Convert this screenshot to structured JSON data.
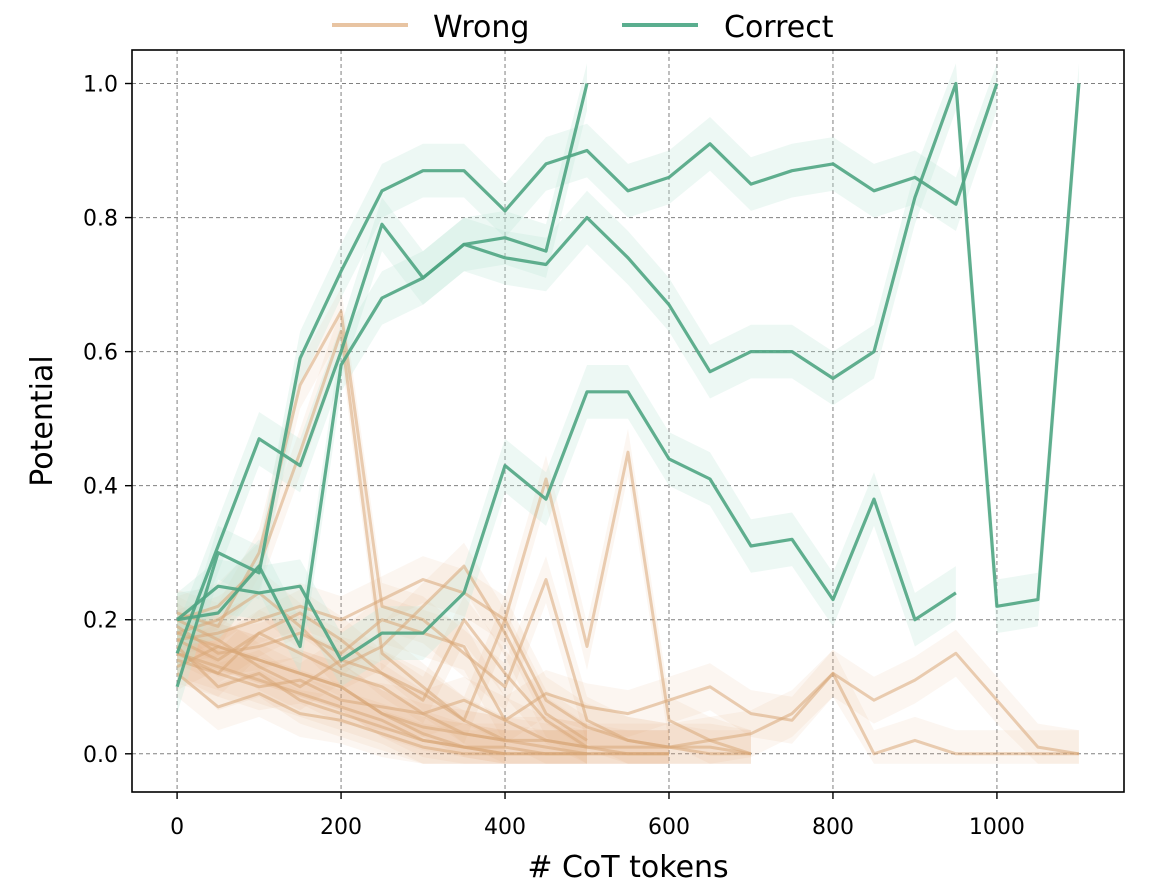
{
  "chart_data": {
    "type": "line",
    "xlabel": "# CoT tokens",
    "ylabel": "Potential",
    "xlim": [
      -55,
      1155
    ],
    "ylim": [
      -0.057,
      1.05
    ],
    "xticks": [
      0,
      200,
      400,
      600,
      800,
      1000
    ],
    "yticks": [
      0.0,
      0.2,
      0.4,
      0.6,
      0.8,
      1.0
    ],
    "xtick_labels": [
      "0",
      "200",
      "400",
      "600",
      "800",
      "1000"
    ],
    "ytick_labels": [
      "0.0",
      "0.2",
      "0.4",
      "0.6",
      "0.8",
      "1.0"
    ],
    "grid": true,
    "legend": {
      "placement": "top-center",
      "entries": [
        {
          "label": "Wrong",
          "color": "#e8c4a2"
        },
        {
          "label": "Correct",
          "color": "#5aae8f"
        }
      ]
    },
    "colors": {
      "wrong_line": "#d9a779",
      "wrong_band": "#e2a474",
      "correct_line": "#4fa583",
      "correct_band": "#bfe6d6"
    },
    "band_halfwidth": {
      "correct": 0.04,
      "wrong": 0.035
    },
    "series_correct": [
      {
        "x": [
          0,
          50,
          100,
          150,
          200,
          250,
          300,
          350,
          400,
          450,
          500
        ],
        "y": [
          0.15,
          0.31,
          0.47,
          0.43,
          0.6,
          0.79,
          0.71,
          0.76,
          0.77,
          0.75,
          1.0
        ]
      },
      {
        "x": [
          0,
          50,
          100,
          150,
          200,
          250,
          300,
          350,
          400,
          450,
          500,
          550,
          600,
          650,
          700,
          750,
          800,
          850,
          900,
          950
        ],
        "y": [
          0.2,
          0.25,
          0.24,
          0.25,
          0.14,
          0.18,
          0.18,
          0.24,
          0.43,
          0.38,
          0.54,
          0.54,
          0.44,
          0.41,
          0.31,
          0.32,
          0.23,
          0.38,
          0.2,
          0.24
        ]
      },
      {
        "x": [
          0,
          50,
          100,
          150,
          200,
          250,
          300,
          350,
          400,
          450,
          500,
          550,
          600,
          650,
          700,
          750,
          800,
          850,
          900,
          950,
          1000,
          1050,
          1100
        ],
        "y": [
          0.2,
          0.21,
          0.28,
          0.16,
          0.58,
          0.68,
          0.71,
          0.76,
          0.74,
          0.73,
          0.8,
          0.74,
          0.67,
          0.57,
          0.6,
          0.6,
          0.56,
          0.6,
          0.83,
          1.0,
          0.22,
          0.23,
          1.0
        ]
      },
      {
        "x": [
          0,
          50,
          100,
          150,
          200,
          250,
          300,
          350,
          400,
          450,
          500,
          550,
          600,
          650,
          700,
          750,
          800,
          850,
          900,
          950,
          1000
        ],
        "y": [
          0.1,
          0.3,
          0.27,
          0.59,
          0.72,
          0.84,
          0.87,
          0.87,
          0.81,
          0.88,
          0.9,
          0.84,
          0.86,
          0.91,
          0.85,
          0.87,
          0.88,
          0.84,
          0.86,
          0.82,
          1.0
        ]
      }
    ],
    "series_wrong": [
      {
        "x": [
          0,
          50,
          100,
          150,
          200,
          250,
          300,
          350,
          400,
          450,
          500,
          550,
          600,
          650,
          700,
          750,
          800,
          850,
          900,
          950,
          1000,
          1050,
          1100
        ],
        "y": [
          0.15,
          0.12,
          0.1,
          0.11,
          0.08,
          0.07,
          0.06,
          0.08,
          0.05,
          0.09,
          0.07,
          0.06,
          0.08,
          0.1,
          0.06,
          0.05,
          0.12,
          0.08,
          0.11,
          0.15,
          0.08,
          0.01,
          0.0
        ]
      },
      {
        "x": [
          0,
          50,
          100,
          150,
          200,
          250,
          300,
          350,
          400,
          450,
          500,
          550,
          600,
          650,
          700,
          750,
          800,
          850,
          900,
          950,
          1000,
          1050,
          1100
        ],
        "y": [
          0.18,
          0.16,
          0.14,
          0.12,
          0.1,
          0.06,
          0.04,
          0.03,
          0.02,
          0.02,
          0.01,
          0.01,
          0.01,
          0.02,
          0.03,
          0.06,
          0.12,
          0.0,
          0.02,
          0.0,
          0.0,
          0.0,
          0.0
        ]
      },
      {
        "x": [
          0,
          50,
          100,
          150,
          200,
          250,
          300,
          350,
          400,
          450,
          500,
          550,
          600,
          650,
          700
        ],
        "y": [
          0.2,
          0.22,
          0.28,
          0.45,
          0.63,
          0.15,
          0.1,
          0.05,
          0.2,
          0.41,
          0.16,
          0.45,
          0.05,
          0.02,
          0.0
        ]
      },
      {
        "x": [
          0,
          50,
          100,
          150,
          200,
          250,
          300,
          350,
          400,
          450,
          500,
          550,
          600,
          650,
          700
        ],
        "y": [
          0.21,
          0.19,
          0.3,
          0.55,
          0.66,
          0.22,
          0.2,
          0.15,
          0.1,
          0.26,
          0.05,
          0.02,
          0.01,
          0.01,
          0.0
        ]
      },
      {
        "x": [
          0,
          50,
          100,
          150,
          200,
          250,
          300,
          350,
          400,
          450,
          500,
          550,
          600,
          650,
          700
        ],
        "y": [
          0.17,
          0.18,
          0.2,
          0.22,
          0.2,
          0.23,
          0.26,
          0.24,
          0.2,
          0.08,
          0.04,
          0.02,
          0.01,
          0.0,
          0.0
        ]
      },
      {
        "x": [
          0,
          50,
          100,
          150,
          200,
          250,
          300,
          350,
          400,
          450,
          500,
          550,
          600
        ],
        "y": [
          0.14,
          0.12,
          0.18,
          0.15,
          0.12,
          0.1,
          0.06,
          0.03,
          0.02,
          0.01,
          0.0,
          0.0,
          0.0
        ]
      },
      {
        "x": [
          0,
          50,
          100,
          150,
          200,
          250,
          300,
          350,
          400,
          450,
          500,
          550,
          600
        ],
        "y": [
          0.16,
          0.1,
          0.12,
          0.08,
          0.06,
          0.04,
          0.02,
          0.01,
          0.01,
          0.0,
          0.0,
          0.0,
          0.0
        ]
      },
      {
        "x": [
          0,
          50,
          100,
          150,
          200,
          250,
          300,
          350,
          400,
          450,
          500,
          550,
          600
        ],
        "y": [
          0.19,
          0.15,
          0.16,
          0.18,
          0.15,
          0.2,
          0.18,
          0.16,
          0.05,
          0.02,
          0.01,
          0.0,
          0.0
        ]
      },
      {
        "x": [
          0,
          50,
          100,
          150,
          200,
          250,
          300,
          350,
          400,
          450,
          500
        ],
        "y": [
          0.12,
          0.07,
          0.09,
          0.06,
          0.05,
          0.03,
          0.01,
          0.0,
          0.0,
          0.0,
          0.0
        ]
      },
      {
        "x": [
          0,
          50,
          100,
          150,
          200,
          250,
          300,
          350,
          400,
          450,
          500
        ],
        "y": [
          0.2,
          0.17,
          0.13,
          0.1,
          0.14,
          0.12,
          0.08,
          0.2,
          0.12,
          0.05,
          0.01
        ]
      },
      {
        "x": [
          0,
          50,
          100,
          150,
          200,
          250,
          300,
          350,
          400,
          450,
          500
        ],
        "y": [
          0.15,
          0.13,
          0.11,
          0.09,
          0.07,
          0.05,
          0.02,
          0.01,
          0.0,
          0.0,
          0.0
        ]
      },
      {
        "x": [
          0,
          50,
          100,
          150,
          200,
          250,
          300,
          350,
          400,
          450,
          500
        ],
        "y": [
          0.18,
          0.2,
          0.24,
          0.19,
          0.13,
          0.16,
          0.22,
          0.28,
          0.18,
          0.06,
          0.02
        ]
      },
      {
        "x": [
          0,
          50,
          100,
          150,
          200,
          250,
          300,
          350,
          400
        ],
        "y": [
          0.13,
          0.16,
          0.14,
          0.12,
          0.1,
          0.06,
          0.03,
          0.01,
          0.0
        ]
      },
      {
        "x": [
          0,
          50,
          100,
          150,
          200,
          250,
          300,
          350,
          400
        ],
        "y": [
          0.17,
          0.14,
          0.18,
          0.21,
          0.17,
          0.12,
          0.09,
          0.05,
          0.02
        ]
      }
    ]
  }
}
